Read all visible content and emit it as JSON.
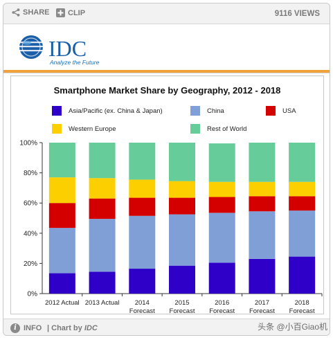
{
  "toolbar": {
    "share_label": "SHARE",
    "clip_label": "CLIP",
    "views": "9116 VIEWS"
  },
  "logo": {
    "wordmark": "IDC",
    "tagline": "Analyze the Future"
  },
  "footer": {
    "info_label": "INFO",
    "credit_prefix": "| Chart by ",
    "credit_brand": "IDC"
  },
  "watermark": "头条 @小百Giao机",
  "colors": {
    "asia": "#2e00c8",
    "china": "#7f9fd6",
    "usa": "#d40000",
    "western_europe": "#fcd000",
    "rest_of_world": "#66cc99",
    "accent_rule": "#f0a23c"
  },
  "chart_data": {
    "type": "bar",
    "stacked": true,
    "title": "Smartphone Market Share by Geography, 2012 - 2018",
    "categories": [
      [
        "2012 Actual"
      ],
      [
        "2013 Actual"
      ],
      [
        "2014",
        "Forecast"
      ],
      [
        "2015",
        "Forecast"
      ],
      [
        "2016",
        "Forecast"
      ],
      [
        "2017",
        "Forecast"
      ],
      [
        "2018",
        "Forecast"
      ]
    ],
    "y_ticks": [
      "0%",
      "20%",
      "40%",
      "60%",
      "80%",
      "100%"
    ],
    "ylim": [
      0,
      100
    ],
    "grid": false,
    "legend_placement": "top",
    "series": [
      {
        "name": "Asia/Pacific (ex. China & Japan)",
        "color_key": "asia",
        "values": [
          13.5,
          14.5,
          16.5,
          18.5,
          20.5,
          23,
          24.5
        ]
      },
      {
        "name": "China",
        "color_key": "china",
        "values": [
          30,
          35,
          35,
          34,
          33,
          31.5,
          30.5
        ]
      },
      {
        "name": "USA",
        "color_key": "usa",
        "values": [
          16.5,
          13.5,
          12,
          11,
          10.5,
          10,
          9.5
        ]
      },
      {
        "name": "Western Europe",
        "color_key": "western_europe",
        "values": [
          17,
          13.5,
          12,
          11,
          10,
          9.5,
          9.5
        ]
      },
      {
        "name": "Rest of World",
        "color_key": "rest_of_world",
        "values": [
          23,
          23.5,
          24.5,
          25.5,
          25.5,
          26,
          26
        ]
      }
    ]
  }
}
